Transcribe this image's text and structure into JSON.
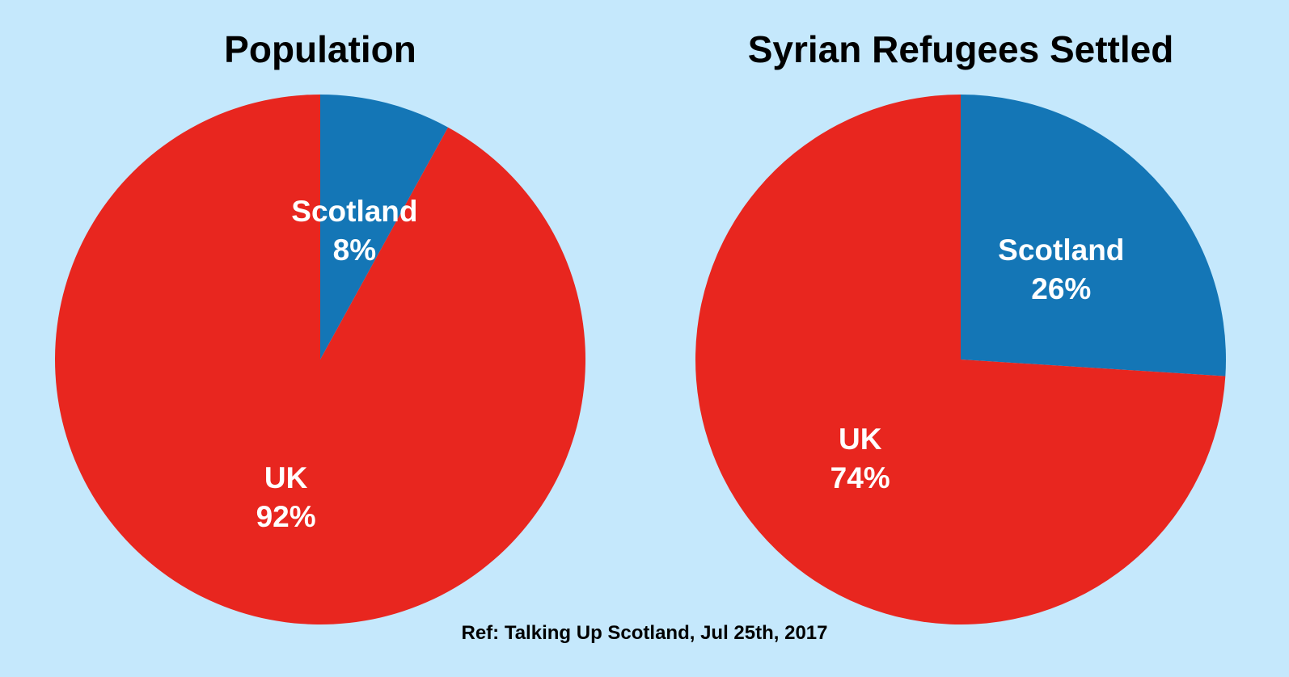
{
  "colors": {
    "background": "#c5e8fc",
    "scotland": "#1476b6",
    "uk": "#e8261f",
    "label_text": "#ffffff",
    "title_text": "#000000"
  },
  "source": "Ref: Talking Up Scotland, Jul 25th, 2017",
  "chart_data": [
    {
      "type": "pie",
      "title": "Population",
      "slices": [
        {
          "name": "Scotland",
          "value": 8,
          "label": "8%",
          "color": "#1476b6"
        },
        {
          "name": "UK",
          "value": 92,
          "label": "92%",
          "color": "#e8261f"
        }
      ],
      "start_angle": "12 o'clock",
      "direction": "clockwise",
      "legend": "none"
    },
    {
      "type": "pie",
      "title": "Syrian Refugees Settled",
      "slices": [
        {
          "name": "Scotland",
          "value": 26,
          "label": "26%",
          "color": "#1476b6"
        },
        {
          "name": "UK",
          "value": 74,
          "label": "74%",
          "color": "#e8261f"
        }
      ],
      "start_angle": "12 o'clock",
      "direction": "clockwise",
      "legend": "none"
    }
  ]
}
